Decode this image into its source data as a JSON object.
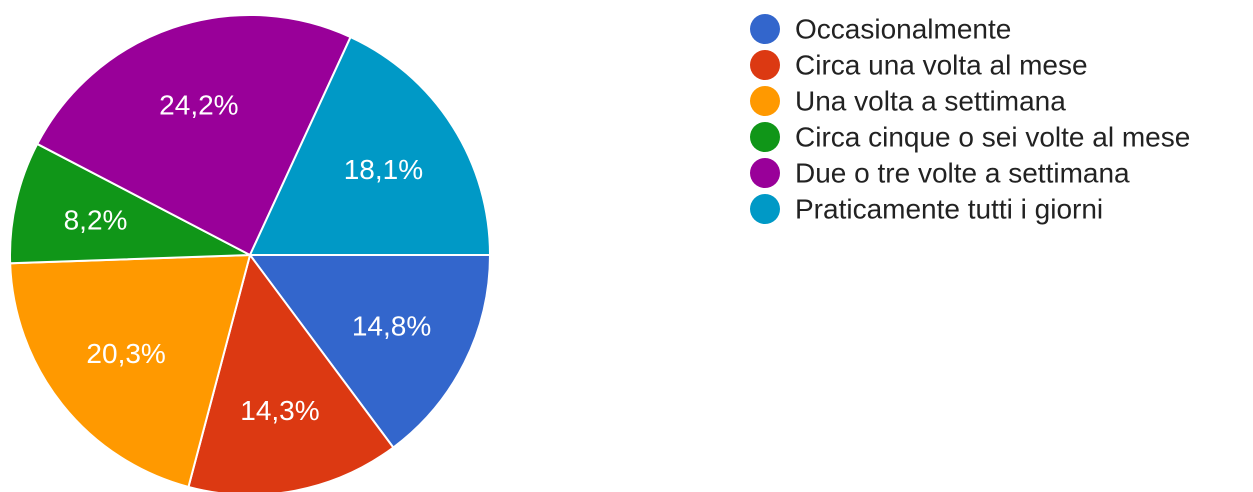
{
  "chart_data": {
    "type": "pie",
    "title": "",
    "start_angle_deg": 0,
    "direction": "clockwise",
    "legend_position": "right",
    "slices": [
      {
        "label": "Occasionalmente",
        "value": 14.8,
        "display": "14,8%",
        "color": "#3366cc"
      },
      {
        "label": "Circa una volta al mese",
        "value": 14.3,
        "display": "14,3%",
        "color": "#dc3912"
      },
      {
        "label": "Una volta a settimana",
        "value": 20.3,
        "display": "20,3%",
        "color": "#ff9900"
      },
      {
        "label": "Circa cinque o sei volte al mese",
        "value": 8.2,
        "display": "8,2%",
        "color": "#109618"
      },
      {
        "label": "Due o tre volte a settimana",
        "value": 24.2,
        "display": "24,2%",
        "color": "#990099"
      },
      {
        "label": "Praticamente tutti i giorni",
        "value": 18.1,
        "display": "18,1%",
        "color": "#0099c6"
      }
    ]
  }
}
